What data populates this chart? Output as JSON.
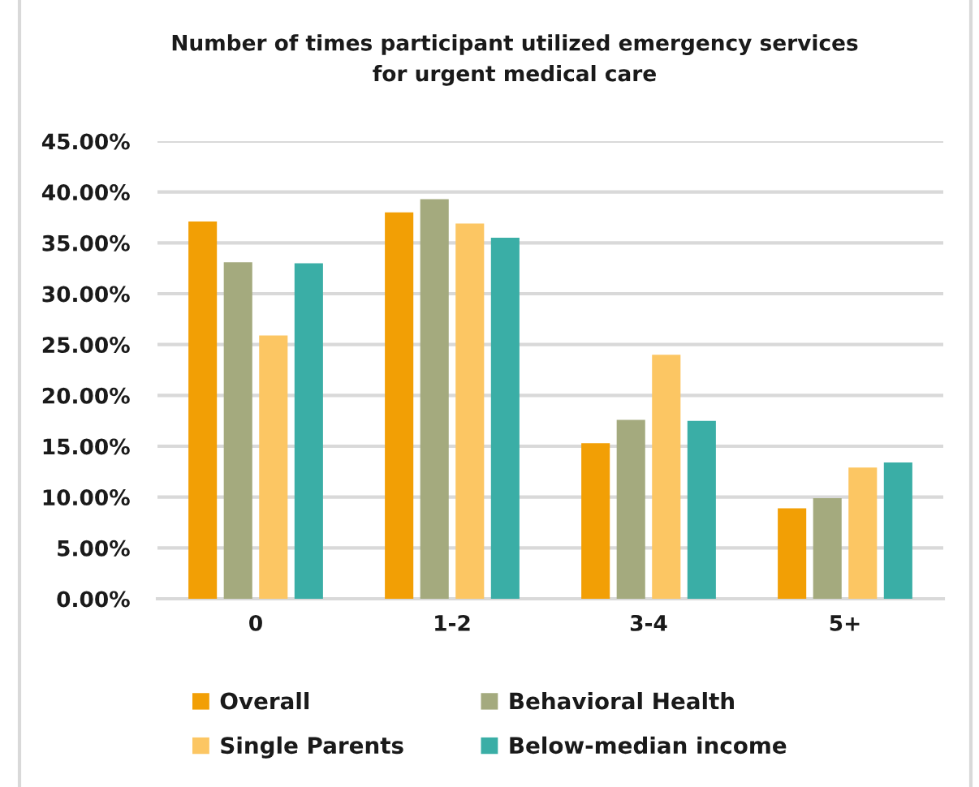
{
  "chart_data": {
    "type": "bar",
    "title": "Number of times participant utilized emergency services\nfor urgent medical care",
    "categories": [
      "0",
      "1-2",
      "3-4",
      "5+"
    ],
    "series": [
      {
        "name": "Overall",
        "color": "#f29f05",
        "values": [
          37.1,
          38.0,
          15.3,
          8.9
        ]
      },
      {
        "name": "Behavioral Health",
        "color": "#a4aa7e",
        "values": [
          33.1,
          39.3,
          17.6,
          9.9
        ]
      },
      {
        "name": "Single Parents",
        "color": "#fcc663",
        "values": [
          25.9,
          36.9,
          24.0,
          12.9
        ]
      },
      {
        "name": "Below-median income",
        "color": "#3aaea6",
        "values": [
          33.0,
          35.5,
          17.5,
          13.4
        ]
      }
    ],
    "ylim": [
      0,
      45
    ],
    "yticks": [
      {
        "value": 0,
        "label": "0.00%"
      },
      {
        "value": 5,
        "label": "5.00%"
      },
      {
        "value": 10,
        "label": "10.00%"
      },
      {
        "value": 15,
        "label": "15.00%"
      },
      {
        "value": 20,
        "label": "20.00%"
      },
      {
        "value": 25,
        "label": "25.00%"
      },
      {
        "value": 30,
        "label": "30.00%"
      },
      {
        "value": 35,
        "label": "35.00%"
      },
      {
        "value": 40,
        "label": "40.00%"
      },
      {
        "value": 45,
        "label": "45.00%"
      }
    ],
    "grid": "y",
    "legend": "bottom"
  }
}
